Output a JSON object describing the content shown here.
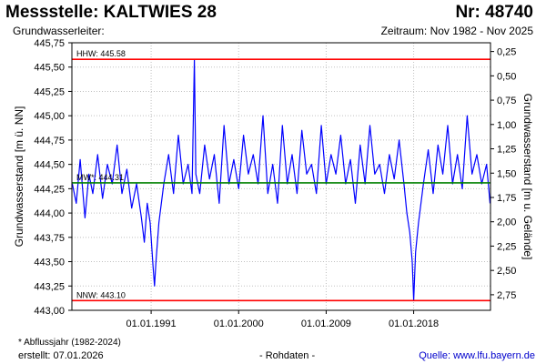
{
  "header": {
    "title": "Messstelle: KALTWIES 28",
    "number": "Nr: 48740",
    "aquifer_label": "Grundwasserleiter:",
    "period": "Zeitraum: Nov 1982 - Nov 2025"
  },
  "footer": {
    "footnote": "* Abflussjahr (1982-2024)",
    "created": "erstellt:  07.01.2026",
    "raw_data": "- Rohdaten -",
    "source": "Quelle:  www.lfu.bayern.de"
  },
  "colors": {
    "series": "#0000ff",
    "extreme_lines": "#ff0000",
    "mean_line": "#008000",
    "grid": "#c0c0c0",
    "source_link": "#0000cc"
  },
  "chart_data": {
    "type": "line",
    "xlabel": "",
    "ylabel": "Grundwasserstand [m ü. NN]",
    "y2label": "Grundwasserstand [m u. Gelände]",
    "xlim": [
      1982.85,
      2025.9
    ],
    "ylim": [
      443.0,
      445.75
    ],
    "y2lim": [
      2.91,
      0.16
    ],
    "x_ticks": [
      {
        "value": 1991.0,
        "label": "01.01.1991"
      },
      {
        "value": 2000.0,
        "label": "01.01.2000"
      },
      {
        "value": 2009.0,
        "label": "01.01.2009"
      },
      {
        "value": 2018.0,
        "label": "01.01.2018"
      }
    ],
    "y_ticks": [
      "443,00",
      "443,25",
      "443,50",
      "443,75",
      "444,00",
      "444,25",
      "444,50",
      "444,75",
      "445,00",
      "445,25",
      "445,50",
      "445,75"
    ],
    "y2_ticks": [
      "0,25",
      "0,50",
      "0,75",
      "1,00",
      "1,25",
      "1,50",
      "1,75",
      "2,00",
      "2,25",
      "2,50",
      "2,75"
    ],
    "grid": true,
    "reference_lines": [
      {
        "label": "HHW: 445.58",
        "value": 445.58,
        "color": "#ff0000"
      },
      {
        "label": "MW*: 444.31",
        "value": 444.31,
        "color": "#008000"
      },
      {
        "label": "NNW: 443.10",
        "value": 443.1,
        "color": "#ff0000"
      }
    ],
    "series": [
      {
        "x": [
          1982.9,
          1983.3,
          1983.7,
          1984.2,
          1984.6,
          1985.0,
          1985.5,
          1986.0,
          1986.5,
          1987.0,
          1987.5,
          1988.0,
          1988.5,
          1989.0,
          1989.5,
          1990.0,
          1990.3,
          1990.6,
          1990.9,
          1991.2,
          1991.35,
          1991.5,
          1991.8,
          1992.3,
          1992.8,
          1993.3,
          1993.8,
          1994.3,
          1994.8,
          1995.2,
          1995.45,
          1995.6,
          1996.0,
          1996.5,
          1997.0,
          1997.5,
          1998.0,
          1998.5,
          1999.0,
          1999.5,
          2000.0,
          2000.5,
          2001.0,
          2001.5,
          2002.0,
          2002.5,
          2003.0,
          2003.5,
          2004.0,
          2004.5,
          2005.0,
          2005.5,
          2006.0,
          2006.5,
          2007.0,
          2007.5,
          2008.0,
          2008.5,
          2009.0,
          2009.5,
          2010.0,
          2010.5,
          2011.0,
          2011.5,
          2012.0,
          2012.5,
          2013.0,
          2013.5,
          2014.0,
          2014.5,
          2015.0,
          2015.5,
          2016.0,
          2016.5,
          2017.0,
          2017.3,
          2017.6,
          2017.85,
          2018.0,
          2018.2,
          2018.5,
          2019.0,
          2019.5,
          2020.0,
          2020.5,
          2021.0,
          2021.5,
          2022.0,
          2022.5,
          2023.0,
          2023.5,
          2024.0,
          2024.5,
          2025.0,
          2025.5,
          2025.85
        ],
        "y": [
          444.3,
          444.1,
          444.55,
          443.95,
          444.4,
          444.2,
          444.6,
          444.15,
          444.5,
          444.3,
          444.7,
          444.2,
          444.45,
          444.05,
          444.3,
          443.95,
          443.7,
          444.1,
          443.9,
          443.45,
          443.25,
          443.5,
          443.9,
          444.3,
          444.6,
          444.2,
          444.8,
          444.3,
          444.5,
          444.2,
          445.58,
          444.4,
          444.2,
          444.7,
          444.35,
          444.6,
          444.1,
          444.9,
          444.3,
          444.55,
          444.25,
          444.8,
          444.4,
          444.6,
          444.3,
          445.0,
          444.2,
          444.5,
          444.1,
          444.9,
          444.3,
          444.6,
          444.2,
          444.85,
          444.4,
          444.5,
          444.2,
          444.9,
          444.3,
          444.6,
          444.4,
          444.8,
          444.3,
          444.55,
          444.1,
          444.7,
          444.3,
          444.9,
          444.4,
          444.5,
          444.2,
          444.6,
          444.35,
          444.75,
          444.3,
          444.0,
          443.8,
          443.5,
          443.1,
          443.6,
          443.9,
          444.3,
          444.65,
          444.2,
          444.7,
          444.4,
          444.9,
          444.3,
          444.6,
          444.25,
          445.0,
          444.4,
          444.6,
          444.3,
          444.5,
          444.1
        ]
      }
    ]
  }
}
